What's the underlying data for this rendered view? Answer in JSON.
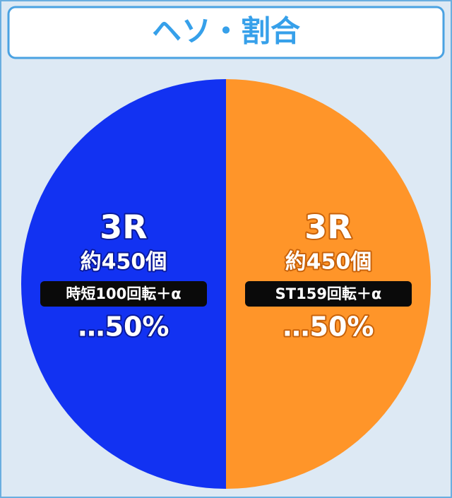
{
  "chart_data": {
    "type": "pie",
    "title": "ヘソ・割合",
    "categories": [
      "時短100回転＋α",
      "ST159回転＋α"
    ],
    "rounds": [
      "3R",
      "3R"
    ],
    "payouts": [
      "約450個",
      "約450個"
    ],
    "values": [
      50,
      50
    ],
    "value_labels": [
      "…50%",
      "…50%"
    ],
    "colors": [
      "#1232f2",
      "#ff9529"
    ]
  }
}
